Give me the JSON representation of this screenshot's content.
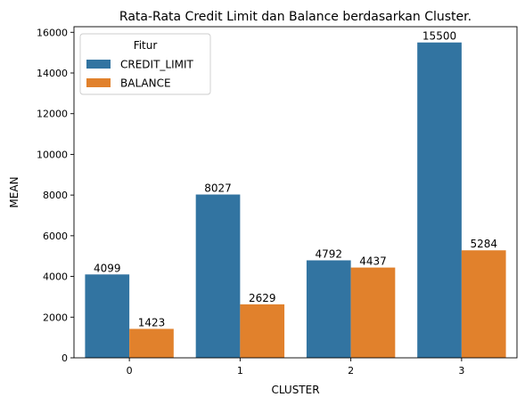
{
  "chart_data": {
    "type": "bar",
    "title": "Rata-Rata Credit Limit dan Balance berdasarkan Cluster.",
    "xlabel": "CLUSTER",
    "ylabel": "MEAN",
    "categories": [
      "0",
      "1",
      "2",
      "3"
    ],
    "ylim": [
      0,
      16275
    ],
    "yticks": [
      0,
      2000,
      4000,
      6000,
      8000,
      10000,
      12000,
      14000,
      16000
    ],
    "grid": false,
    "legend": {
      "title": "Fitur",
      "placement": "top-left"
    },
    "series": [
      {
        "name": "CREDIT_LIMIT",
        "color": "#3274a1",
        "values": [
          4099,
          8027,
          4792,
          15500
        ],
        "labels": [
          "4099",
          "8027",
          "4792",
          "15500"
        ]
      },
      {
        "name": "BALANCE",
        "color": "#e1812c",
        "values": [
          1423,
          2629,
          4437,
          5284
        ],
        "labels": [
          "1423",
          "2629",
          "4437",
          "5284"
        ]
      }
    ]
  }
}
